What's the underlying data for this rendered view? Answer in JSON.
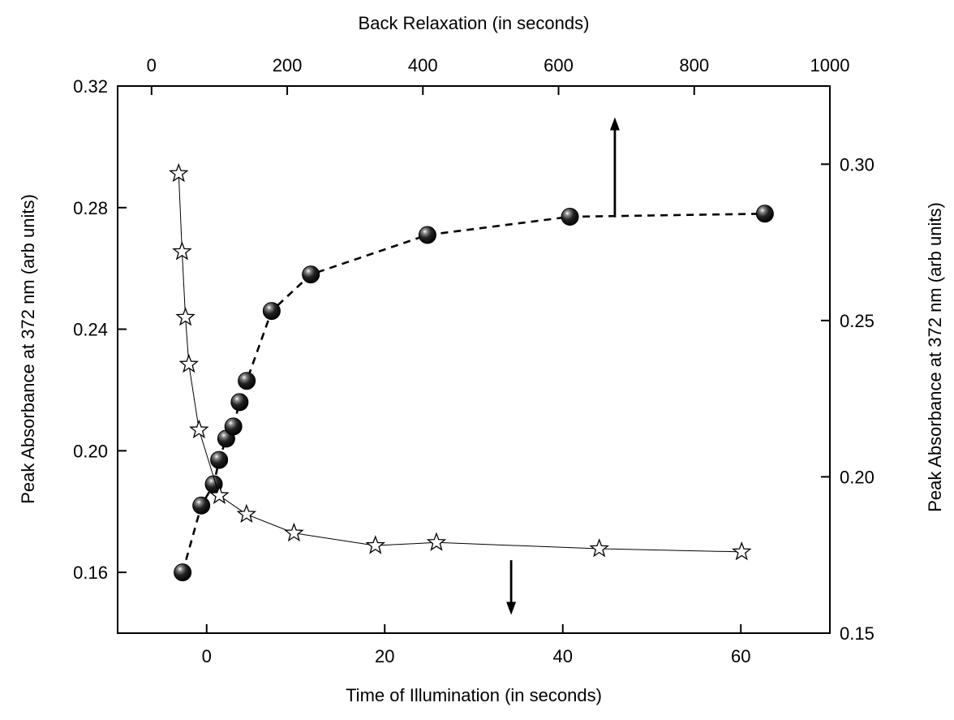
{
  "chart_data": {
    "type": "scatter",
    "title": "",
    "xlabel_bottom": "Time of Illumination (in seconds)",
    "xlabel_top": "Back Relaxation (in seconds)",
    "ylabel_left": "Peak Absorbance at 372 nm (arb units)",
    "ylabel_right": "Peak Absorbance at 372 nm (arb units)",
    "x_bottom_range": [
      -10,
      70
    ],
    "x_top_range": [
      -50,
      1000
    ],
    "y_left_range": [
      0.14,
      0.32
    ],
    "y_right_range": [
      0.15,
      0.325
    ],
    "x_bottom_ticks": [
      0,
      20,
      40,
      60
    ],
    "x_top_ticks": [
      0,
      200,
      400,
      600,
      800,
      1000
    ],
    "y_left_ticks": [
      "0.16",
      "0.20",
      "0.24",
      "0.28",
      "0.32"
    ],
    "y_right_ticks": [
      "0.15",
      "0.20",
      "0.25",
      "0.30"
    ],
    "grid": false,
    "legend": "none",
    "series": [
      {
        "marker": "filled-circle",
        "line": "dashed",
        "axes": "bottom-left",
        "x": [
          -2.7,
          -0.6,
          0.8,
          1.4,
          2.2,
          3.0,
          3.7,
          4.5,
          7.3,
          11.7,
          24.8,
          40.8,
          62.7
        ],
        "y": [
          0.16,
          0.182,
          0.189,
          0.197,
          0.204,
          0.208,
          0.216,
          0.223,
          0.246,
          0.258,
          0.271,
          0.277,
          0.278
        ]
      },
      {
        "marker": "hollow-star",
        "line": "solid",
        "axes": "top-right",
        "x": [
          40,
          45,
          50,
          55,
          70,
          100,
          140,
          210,
          330,
          420,
          660,
          870
        ],
        "y": [
          0.297,
          0.272,
          0.251,
          0.236,
          0.215,
          0.194,
          0.188,
          0.182,
          0.178,
          0.179,
          0.177,
          0.176
        ]
      }
    ],
    "annotations": [
      {
        "type": "arrow",
        "direction": "up",
        "meaning": "series uses top axis",
        "at_x_top": 683,
        "from_y_right": 0.283,
        "to_y_right": 0.315
      },
      {
        "type": "arrow",
        "direction": "down",
        "meaning": "series uses bottom axis",
        "at_x_bottom": 34.2,
        "from_y_left": 0.164,
        "to_y_left": 0.146
      }
    ]
  }
}
